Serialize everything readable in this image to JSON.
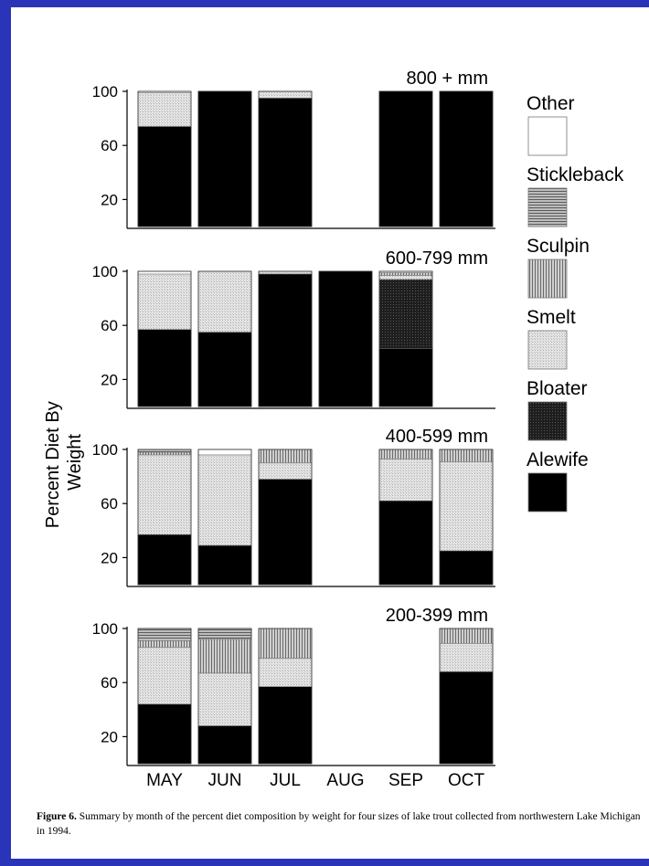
{
  "chart_data": {
    "type": "bar",
    "stacked": true,
    "categories": [
      "MAY",
      "JUN",
      "JUL",
      "AUG",
      "SEP",
      "OCT"
    ],
    "ylabel": "Percent Diet By Weight",
    "yticks": [
      20,
      60,
      100
    ],
    "ylim": [
      0,
      100
    ],
    "legend_position": "right",
    "series_order": [
      "Alewife",
      "Bloater",
      "Smelt",
      "Sculpin",
      "Stickleback",
      "Other"
    ],
    "colors": {
      "Alewife": "#000000",
      "Bloater": "#2a2a2a",
      "Smelt": "#dcdcdc",
      "Sculpin": "#a8a8a8",
      "Stickleback": "#8e8e8e",
      "Other": "#ffffff"
    },
    "legend": [
      {
        "name": "Other"
      },
      {
        "name": "Stickleback"
      },
      {
        "name": "Sculpin"
      },
      {
        "name": "Smelt"
      },
      {
        "name": "Bloater"
      },
      {
        "name": "Alewife"
      }
    ],
    "panels": [
      {
        "label": "800 + mm",
        "bars": [
          {
            "month": "MAY",
            "Alewife": 74,
            "Smelt": 25,
            "Other": 1
          },
          {
            "month": "JUN",
            "Alewife": 100
          },
          {
            "month": "JUL",
            "Alewife": 95,
            "Smelt": 5
          },
          {
            "month": "AUG"
          },
          {
            "month": "SEP",
            "Alewife": 100
          },
          {
            "month": "OCT",
            "Alewife": 100
          }
        ]
      },
      {
        "label": "600-799 mm",
        "bars": [
          {
            "month": "MAY",
            "Alewife": 57,
            "Smelt": 41,
            "Other": 2
          },
          {
            "month": "JUN",
            "Alewife": 55,
            "Smelt": 45
          },
          {
            "month": "JUL",
            "Alewife": 98,
            "Smelt": 2
          },
          {
            "month": "AUG",
            "Alewife": 100
          },
          {
            "month": "SEP",
            "Alewife": 43,
            "Bloater": 51,
            "Smelt": 3,
            "Sculpin": 2,
            "Other": 1
          }
        ]
      },
      {
        "label": "400-599 mm",
        "bars": [
          {
            "month": "MAY",
            "Alewife": 37,
            "Smelt": 59,
            "Sculpin": 2,
            "Stickleback": 2
          },
          {
            "month": "JUN",
            "Alewife": 29,
            "Smelt": 67,
            "Other": 4
          },
          {
            "month": "JUL",
            "Alewife": 78,
            "Smelt": 12,
            "Sculpin": 10
          },
          {
            "month": "AUG"
          },
          {
            "month": "SEP",
            "Alewife": 62,
            "Smelt": 31,
            "Sculpin": 7
          },
          {
            "month": "OCT",
            "Alewife": 25,
            "Smelt": 66,
            "Sculpin": 9
          }
        ]
      },
      {
        "label": "200-399 mm",
        "bars": [
          {
            "month": "MAY",
            "Alewife": 44,
            "Smelt": 42,
            "Stickleback": 9,
            "Sculpin": 5
          },
          {
            "month": "JUN",
            "Alewife": 28,
            "Smelt": 39,
            "Sculpin": 25,
            "Stickleback": 8
          },
          {
            "month": "JUL",
            "Alewife": 57,
            "Smelt": 21,
            "Sculpin": 22
          },
          {
            "month": "AUG"
          },
          {
            "month": "SEP"
          },
          {
            "month": "OCT",
            "Alewife": 68,
            "Smelt": 21,
            "Sculpin": 11
          }
        ]
      }
    ]
  },
  "caption": {
    "label": "Figure 6.",
    "text": "Summary by month of the percent diet composition by weight for four sizes of lake trout collected from northwestern Lake Michigan in 1994."
  }
}
